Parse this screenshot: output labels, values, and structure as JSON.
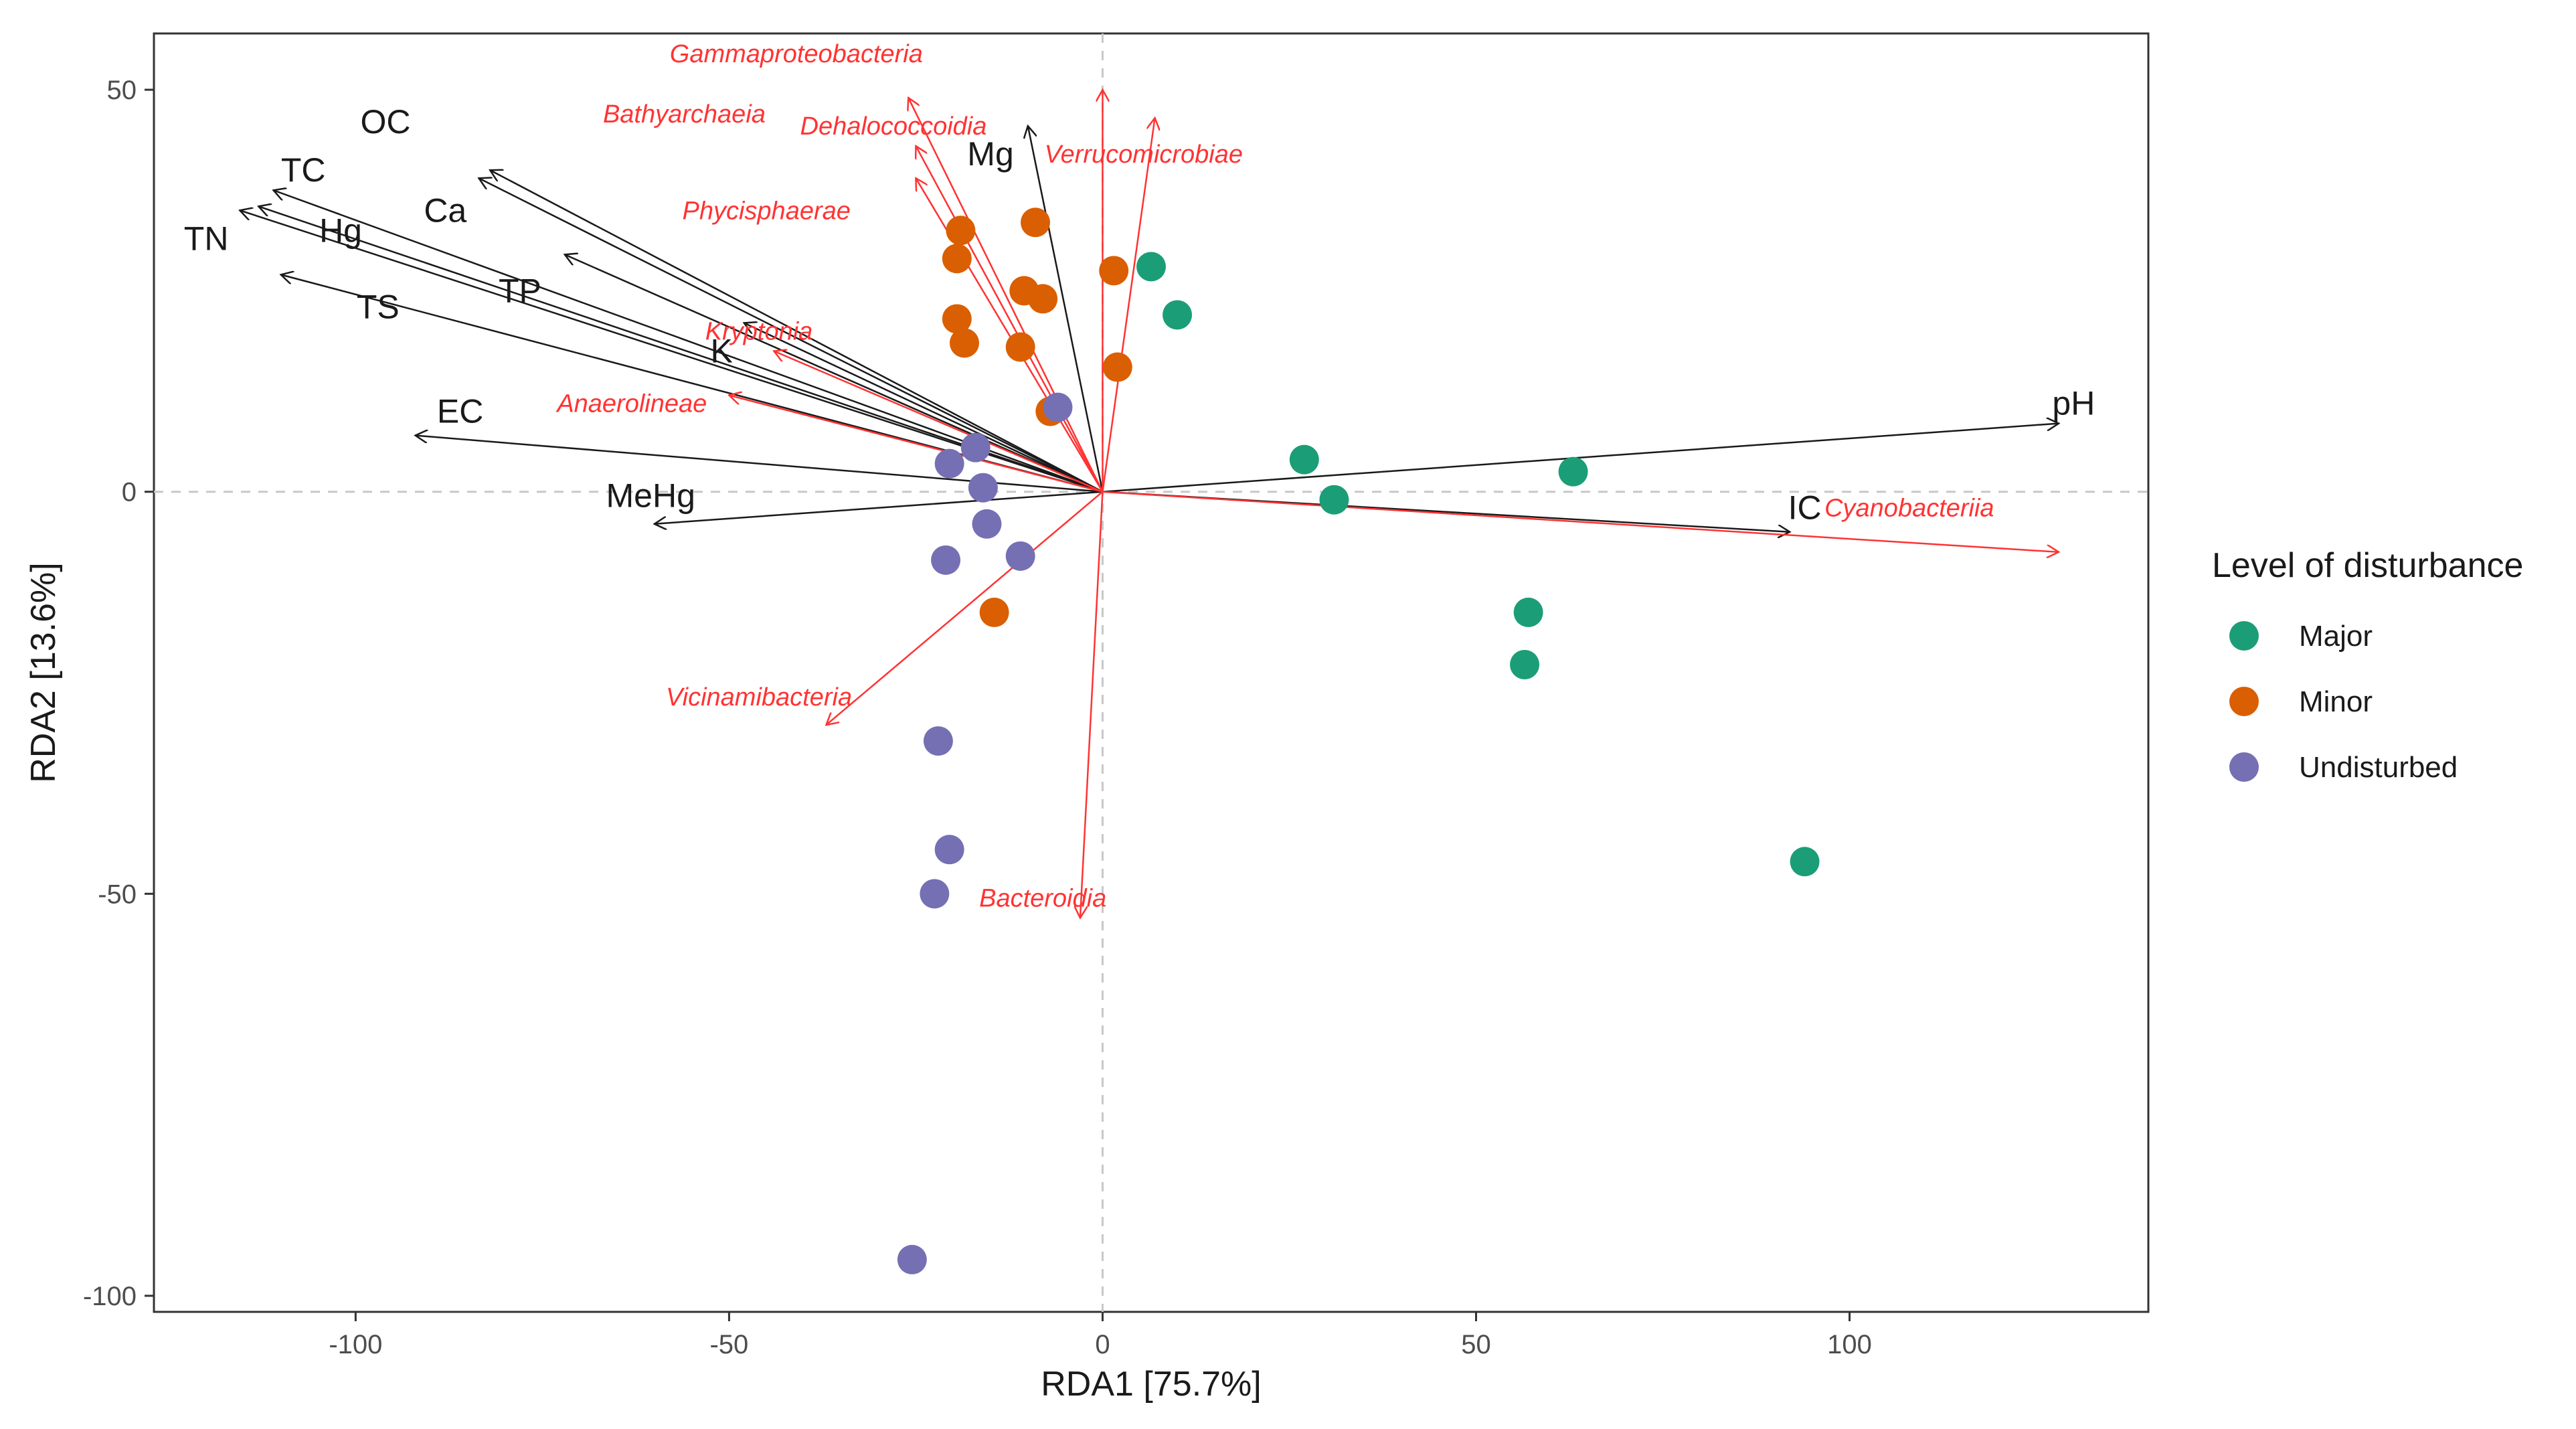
{
  "chart_data": {
    "type": "scatter",
    "subtype": "rda-biplot",
    "title": "",
    "xlabel": "RDA1 [75.7%]",
    "ylabel": "RDA2 [13.6%]",
    "xlim": [
      -127,
      140
    ],
    "ylim": [
      -102,
      57
    ],
    "xticks": [
      -100,
      -50,
      0,
      50,
      100
    ],
    "yticks": [
      -100,
      -50,
      0,
      50
    ],
    "reference_lines": {
      "x": 0,
      "y": 0,
      "style": "dashed"
    },
    "grid": false,
    "legend": {
      "title": "Level of disturbance",
      "position": "right",
      "entries": [
        {
          "name": "Major",
          "color": "#1b9e77"
        },
        {
          "name": "Minor",
          "color": "#d95f02"
        },
        {
          "name": "Undisturbed",
          "color": "#7570b3"
        }
      ]
    },
    "series": [
      {
        "name": "Major",
        "color": "#1b9e77",
        "points": [
          [
            6.5,
            28
          ],
          [
            10,
            22
          ],
          [
            27,
            4
          ],
          [
            31,
            -1
          ],
          [
            63,
            2.5
          ],
          [
            57,
            -15
          ],
          [
            56.5,
            -21.5
          ],
          [
            94,
            -46
          ]
        ]
      },
      {
        "name": "Minor",
        "color": "#d95f02",
        "points": [
          [
            -19,
            32.5
          ],
          [
            -9,
            33.5
          ],
          [
            -19.5,
            29
          ],
          [
            1.5,
            27.5
          ],
          [
            -10.5,
            25
          ],
          [
            -8,
            24
          ],
          [
            -19.5,
            21.5
          ],
          [
            -18.5,
            18.5
          ],
          [
            -11,
            18
          ],
          [
            2,
            15.5
          ],
          [
            -7,
            10
          ],
          [
            -14.5,
            -15
          ]
        ]
      },
      {
        "name": "Undisturbed",
        "color": "#7570b3",
        "points": [
          [
            -6,
            10.5
          ],
          [
            -17,
            5.5
          ],
          [
            -20.5,
            3.5
          ],
          [
            -16,
            0.5
          ],
          [
            -15.5,
            -4
          ],
          [
            -21,
            -8.5
          ],
          [
            -11,
            -8
          ],
          [
            -22,
            -31
          ],
          [
            -20.5,
            -44.5
          ],
          [
            -22.5,
            -50
          ],
          [
            -25.5,
            -95.5
          ]
        ]
      }
    ],
    "env_vectors": [
      {
        "name": "OC",
        "x": -83.5,
        "y": 39,
        "label_x": -96,
        "label_y": 46
      },
      {
        "name": "TC",
        "x": -111,
        "y": 37.5,
        "label_x": -107,
        "label_y": 40
      },
      {
        "name": "TN",
        "x": -115.5,
        "y": 35,
        "label_x": -120,
        "label_y": 31.5
      },
      {
        "name": "Hg",
        "x": -113,
        "y": 35.5,
        "label_x": -102,
        "label_y": 32.5
      },
      {
        "name": "Ca",
        "x": -82,
        "y": 40,
        "label_x": -88,
        "label_y": 35
      },
      {
        "name": "TP",
        "x": -72,
        "y": 29.5,
        "label_x": -78,
        "label_y": 25
      },
      {
        "name": "TS",
        "x": -110,
        "y": 27,
        "label_x": -97,
        "label_y": 23
      },
      {
        "name": "K",
        "x": -48,
        "y": 21,
        "label_x": -51,
        "label_y": 17.5
      },
      {
        "name": "EC",
        "x": -92,
        "y": 7,
        "label_x": -86,
        "label_y": 10
      },
      {
        "name": "MeHg",
        "x": -60,
        "y": -4,
        "label_x": -60.5,
        "label_y": -0.5
      },
      {
        "name": "Mg",
        "x": -10,
        "y": 45.5,
        "label_x": -15,
        "label_y": 42
      },
      {
        "name": "pH",
        "x": 128,
        "y": 8.5,
        "label_x": 130,
        "label_y": 11
      },
      {
        "name": "IC",
        "x": 92,
        "y": -5,
        "label_x": 94,
        "label_y": -2
      }
    ],
    "taxa_vectors": [
      {
        "name": "Gammaproteobacteria",
        "x": 0,
        "y": 50,
        "label_x": -41,
        "label_y": 54.5
      },
      {
        "name": "Bathyarchaeia",
        "x": -26,
        "y": 49,
        "label_x": -56,
        "label_y": 47
      },
      {
        "name": "Dehalococcoidia",
        "x": -25,
        "y": 43,
        "label_x": -28,
        "label_y": 45.5
      },
      {
        "name": "Verrucomicrobiae",
        "x": 7,
        "y": 46.5,
        "label_x": 5.5,
        "label_y": 42
      },
      {
        "name": "Phycisphaerae",
        "x": -25,
        "y": 39,
        "label_x": -45,
        "label_y": 35
      },
      {
        "name": "Kryptonia",
        "x": -44,
        "y": 17.5,
        "label_x": -46,
        "label_y": 20
      },
      {
        "name": "Anaerolineae",
        "x": -50,
        "y": 12,
        "label_x": -63,
        "label_y": 11
      },
      {
        "name": "Cyanobacteriia",
        "x": 128,
        "y": -7.5,
        "label_x": 108,
        "label_y": -2
      },
      {
        "name": "Vicinamibacteria",
        "x": -37,
        "y": -29,
        "label_x": -46,
        "label_y": -25.5
      },
      {
        "name": "Bacteroidia",
        "x": -3,
        "y": -53,
        "label_x": -8,
        "label_y": -50.5
      }
    ]
  }
}
